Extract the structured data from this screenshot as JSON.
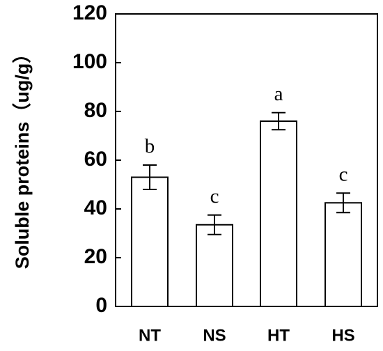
{
  "chart_data": {
    "type": "bar",
    "categories": [
      "NT",
      "NS",
      "HT",
      "HS"
    ],
    "values": [
      53,
      33.5,
      76,
      42.5
    ],
    "errors": [
      5,
      4,
      3.5,
      4
    ],
    "significance": [
      "b",
      "c",
      "a",
      "c"
    ],
    "ylabel": "Soluble proteins（ug/g）",
    "ylim": [
      0,
      120
    ],
    "yticks": [
      0,
      20,
      40,
      60,
      80,
      100,
      120
    ],
    "grid": false,
    "legend": "none"
  }
}
